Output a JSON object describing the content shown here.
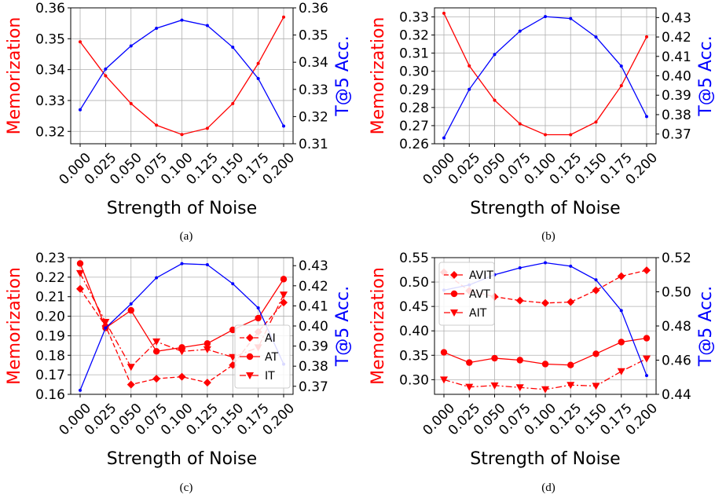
{
  "chart_data": [
    {
      "type": "line",
      "panel": "a",
      "caption": "(a)",
      "xlabel": "Strength of Noise",
      "ylabel_left": "Memorization",
      "ylabel_right": "T@5 Acc.",
      "x": [
        0.0,
        0.025,
        0.05,
        0.075,
        0.1,
        0.125,
        0.15,
        0.175,
        0.2
      ],
      "x_tick_labels": [
        "0.000",
        "0.025",
        "0.050",
        "0.075",
        "0.100",
        "0.125",
        "0.150",
        "0.175",
        "0.200"
      ],
      "ylim_left": [
        0.316,
        0.36
      ],
      "y_ticks_left": [
        "0.32",
        "0.33",
        "0.34",
        "0.35",
        "0.36"
      ],
      "ylim_right": [
        0.31,
        0.36
      ],
      "y_ticks_right": [
        "0.31",
        "0.32",
        "0.33",
        "0.34",
        "0.35",
        "0.36"
      ],
      "grid": true,
      "series": [
        {
          "axis": "left",
          "color": "#ff0000",
          "style": "solid",
          "marker": "dot",
          "values": [
            0.349,
            0.338,
            0.329,
            0.322,
            0.319,
            0.321,
            0.329,
            0.342,
            0.357
          ]
        },
        {
          "axis": "right",
          "color": "#0000ff",
          "style": "solid",
          "marker": "dot",
          "values": [
            0.3225,
            0.3375,
            0.346,
            0.3525,
            0.3555,
            0.3535,
            0.3455,
            0.334,
            0.3165
          ]
        }
      ]
    },
    {
      "type": "line",
      "panel": "b",
      "caption": "(b)",
      "xlabel": "Strength of Noise",
      "ylabel_left": "Memorization",
      "ylabel_right": "T@5 Acc.",
      "x": [
        0.0,
        0.025,
        0.05,
        0.075,
        0.1,
        0.125,
        0.15,
        0.175,
        0.2
      ],
      "x_tick_labels": [
        "0.000",
        "0.025",
        "0.050",
        "0.075",
        "0.100",
        "0.125",
        "0.150",
        "0.175",
        "0.200"
      ],
      "ylim_left": [
        0.26,
        0.335
      ],
      "y_ticks_left": [
        "0.26",
        "0.27",
        "0.28",
        "0.29",
        "0.30",
        "0.31",
        "0.32",
        "0.33"
      ],
      "ylim_right": [
        0.365,
        0.435
      ],
      "y_ticks_right": [
        "0.37",
        "0.38",
        "0.39",
        "0.40",
        "0.41",
        "0.42",
        "0.43"
      ],
      "grid": true,
      "series": [
        {
          "axis": "left",
          "color": "#ff0000",
          "style": "solid",
          "marker": "dot",
          "values": [
            0.332,
            0.303,
            0.284,
            0.271,
            0.265,
            0.265,
            0.272,
            0.292,
            0.319
          ]
        },
        {
          "axis": "right",
          "color": "#0000ff",
          "style": "solid",
          "marker": "dot",
          "values": [
            0.368,
            0.393,
            0.411,
            0.423,
            0.4305,
            0.4295,
            0.42,
            0.405,
            0.379
          ]
        }
      ]
    },
    {
      "type": "line",
      "panel": "c",
      "caption": "(c)",
      "xlabel": "Strength of Noise",
      "ylabel_left": "Memorization",
      "ylabel_right": "T@5 Acc.",
      "x": [
        0.0,
        0.025,
        0.05,
        0.075,
        0.1,
        0.125,
        0.15,
        0.175,
        0.2
      ],
      "x_tick_labels": [
        "0.000",
        "0.025",
        "0.050",
        "0.075",
        "0.100",
        "0.125",
        "0.150",
        "0.175",
        "0.200"
      ],
      "ylim_left": [
        0.16,
        0.23
      ],
      "y_ticks_left": [
        "0.16",
        "0.17",
        "0.18",
        "0.19",
        "0.20",
        "0.21",
        "0.22",
        "0.23"
      ],
      "ylim_right": [
        0.366,
        0.434
      ],
      "y_ticks_right": [
        "0.37",
        "0.38",
        "0.39",
        "0.40",
        "0.41",
        "0.42",
        "0.43"
      ],
      "grid": true,
      "legend": {
        "position": "lower-right",
        "entries": [
          "AI",
          "AT",
          "IT"
        ]
      },
      "series": [
        {
          "name": "AI",
          "axis": "left",
          "color": "#ff0000",
          "style": "dashed",
          "marker": "diamond",
          "values": [
            0.214,
            0.195,
            0.165,
            0.168,
            0.169,
            0.166,
            0.175,
            0.192,
            0.207
          ]
        },
        {
          "name": "AT",
          "axis": "left",
          "color": "#ff0000",
          "style": "solid",
          "marker": "circle",
          "values": [
            0.227,
            0.194,
            0.203,
            0.182,
            0.184,
            0.186,
            0.193,
            0.199,
            0.219
          ]
        },
        {
          "name": "IT",
          "axis": "left",
          "color": "#ff0000",
          "style": "dashdot",
          "marker": "triangle-down",
          "values": [
            0.222,
            0.197,
            0.174,
            0.187,
            0.182,
            0.183,
            0.179,
            0.184,
            0.211
          ]
        },
        {
          "axis": "right",
          "color": "#0000ff",
          "style": "solid",
          "marker": "dot",
          "values": [
            0.368,
            0.399,
            0.411,
            0.424,
            0.431,
            0.4305,
            0.421,
            0.409,
            0.381
          ]
        }
      ]
    },
    {
      "type": "line",
      "panel": "d",
      "caption": "(d)",
      "xlabel": "Strength of Noise",
      "ylabel_left": "Memorization",
      "ylabel_right": "T@5 Acc.",
      "x": [
        0.0,
        0.025,
        0.05,
        0.075,
        0.1,
        0.125,
        0.15,
        0.175,
        0.2
      ],
      "x_tick_labels": [
        "0.000",
        "0.025",
        "0.050",
        "0.075",
        "0.100",
        "0.125",
        "0.150",
        "0.175",
        "0.200"
      ],
      "ylim_left": [
        0.27,
        0.55
      ],
      "y_ticks_left": [
        "0.30",
        "0.35",
        "0.40",
        "0.45",
        "0.50",
        "0.55"
      ],
      "ylim_right": [
        0.44,
        0.52
      ],
      "y_ticks_right": [
        "0.44",
        "0.46",
        "0.48",
        "0.50",
        "0.52"
      ],
      "grid": true,
      "legend": {
        "position": "upper-left",
        "entries": [
          "AVIT",
          "AVT",
          "AIT"
        ]
      },
      "series": [
        {
          "name": "AVIT",
          "axis": "left",
          "color": "#ff0000",
          "style": "dashed",
          "marker": "diamond",
          "values": [
            0.52,
            0.482,
            0.47,
            0.462,
            0.457,
            0.459,
            0.483,
            0.512,
            0.524
          ]
        },
        {
          "name": "AVT",
          "axis": "left",
          "color": "#ff0000",
          "style": "solid",
          "marker": "circle",
          "values": [
            0.356,
            0.335,
            0.344,
            0.34,
            0.332,
            0.33,
            0.353,
            0.377,
            0.385
          ]
        },
        {
          "name": "AIT",
          "axis": "left",
          "color": "#ff0000",
          "style": "dashdot",
          "marker": "triangle-down",
          "values": [
            0.3,
            0.285,
            0.288,
            0.284,
            0.28,
            0.289,
            0.287,
            0.317,
            0.343
          ]
        },
        {
          "axis": "right",
          "color": "#0000ff",
          "style": "solid",
          "marker": "dot",
          "values": [
            0.501,
            0.504,
            0.51,
            0.514,
            0.517,
            0.515,
            0.507,
            0.489,
            0.451
          ]
        }
      ]
    }
  ]
}
